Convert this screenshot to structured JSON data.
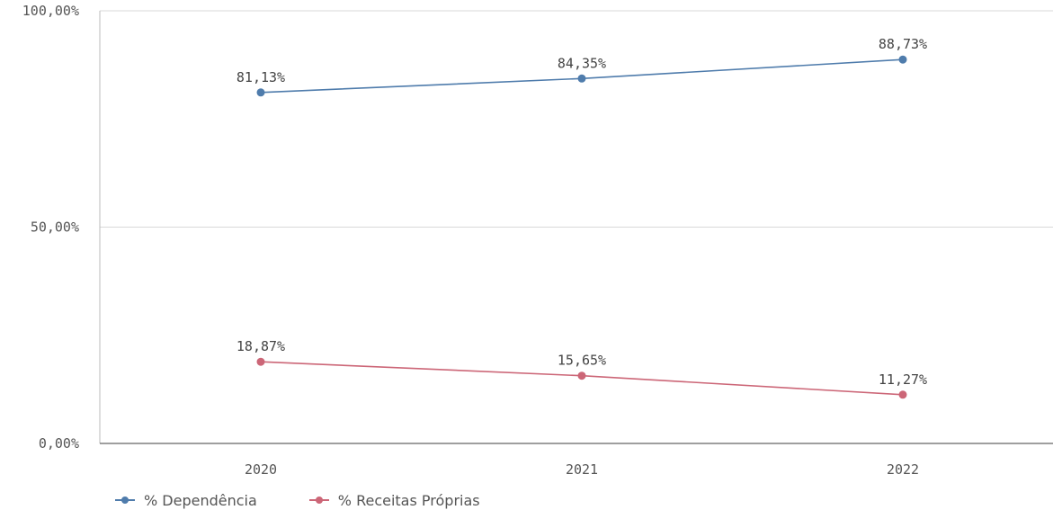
{
  "chart_data": {
    "type": "line",
    "categories": [
      "2020",
      "2021",
      "2022"
    ],
    "series": [
      {
        "name": "% Dependência",
        "values": [
          81.13,
          84.35,
          88.73
        ],
        "labels": [
          "81,13%",
          "84,35%",
          "88,73%"
        ],
        "color": "#4f7cac"
      },
      {
        "name": "% Receitas Próprias",
        "values": [
          18.87,
          15.65,
          11.27
        ],
        "labels": [
          "18,87%",
          "15,65%",
          "11,27%"
        ],
        "color": "#cc6677"
      }
    ],
    "ylim": [
      0,
      100
    ],
    "yticks": [
      {
        "value": 0,
        "label": "0,00%"
      },
      {
        "value": 50,
        "label": "50,00%"
      },
      {
        "value": 100,
        "label": "100,00%"
      }
    ],
    "grid": true,
    "legend_position": "bottom-left"
  }
}
